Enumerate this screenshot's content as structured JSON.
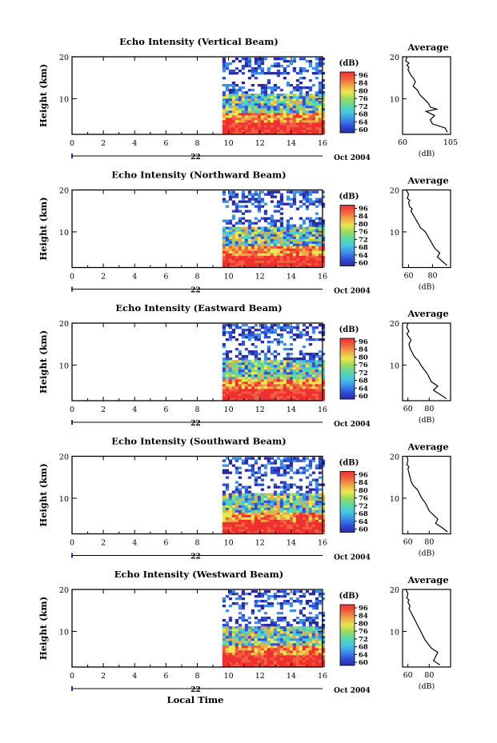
{
  "figure": {
    "xlabel": "Local Time",
    "date_suffix": "Oct 2004"
  },
  "colors": {
    "scale": [
      "#2b2b9e",
      "#2f4fd8",
      "#3f8fe8",
      "#48c8e0",
      "#5ad8a8",
      "#9ad860",
      "#e8e850",
      "#f0a848",
      "#f06040",
      "#f03030"
    ]
  },
  "chart_data": [
    {
      "type": "heatmap",
      "title": "Echo Intensity (Vertical Beam)",
      "ylabel": "Height (km)",
      "xlim": [
        0,
        16
      ],
      "ylim": [
        1.5,
        20
      ],
      "x_ticks": [
        0,
        2,
        4,
        6,
        8,
        10,
        12,
        14,
        16
      ],
      "x_tick_labels": [
        "0",
        "2",
        "4",
        "6",
        "8",
        "10",
        "12",
        "14",
        "16"
      ],
      "y_ticks": [
        10,
        20
      ],
      "y_tick_labels": [
        "10",
        "20"
      ],
      "day_label": "22",
      "data_start_hour": 9.6,
      "colorbar": {
        "title": "(dB)",
        "range": [
          60,
          96
        ],
        "tick_labels": [
          "96",
          "84",
          "80",
          "76",
          "72",
          "68",
          "64",
          "60"
        ]
      },
      "profile": {
        "title": "Average",
        "xlabel": "(dB)",
        "xlim": [
          60,
          105
        ],
        "x_ticks": [
          60,
          105
        ],
        "x_tick_labels": [
          "60",
          "105"
        ],
        "y_ticks": [
          10,
          20
        ],
        "y_tick_labels": [
          "10",
          "20"
        ],
        "x": [
          102,
          100,
          88,
          86,
          90,
          82,
          92,
          86,
          84,
          80,
          78,
          76,
          74,
          70,
          72,
          70,
          68,
          67,
          65,
          66,
          64,
          66,
          63,
          64
        ],
        "y": [
          2,
          3,
          4,
          5,
          6,
          7,
          7.5,
          8,
          9,
          10,
          10.5,
          11,
          12,
          13,
          14,
          15,
          15.5,
          16,
          17,
          17.5,
          18,
          18.5,
          19,
          20
        ]
      }
    },
    {
      "type": "heatmap",
      "title": "Echo Intensity (Northward Beam)",
      "ylabel": "Height (km)",
      "xlim": [
        0,
        16
      ],
      "ylim": [
        1.5,
        20
      ],
      "x_ticks": [
        0,
        2,
        4,
        6,
        8,
        10,
        12,
        14,
        16
      ],
      "x_tick_labels": [
        "0",
        "2",
        "4",
        "6",
        "8",
        "10",
        "12",
        "14",
        "16"
      ],
      "y_ticks": [
        10,
        20
      ],
      "y_tick_labels": [
        "10",
        "20"
      ],
      "day_label": "22",
      "data_start_hour": 9.6,
      "colorbar": {
        "title": "(dB)",
        "range": [
          60,
          96
        ],
        "tick_labels": [
          "96",
          "84",
          "80",
          "76",
          "72",
          "68",
          "64",
          "60"
        ]
      },
      "profile": {
        "title": "Average",
        "xlabel": "(dB)",
        "xlim": [
          55,
          95
        ],
        "x_ticks": [
          60,
          80
        ],
        "x_tick_labels": [
          "60",
          "80"
        ],
        "y_ticks": [
          10,
          20
        ],
        "y_tick_labels": [
          "10",
          "20"
        ],
        "x": [
          92,
          88,
          84,
          86,
          82,
          80,
          78,
          76,
          74,
          72,
          70,
          68,
          66,
          64,
          62,
          63,
          61,
          60,
          61,
          59,
          60,
          58
        ],
        "y": [
          2,
          3,
          4,
          5,
          6,
          7,
          8,
          9,
          10,
          10.5,
          11,
          12,
          13,
          14,
          15,
          15.5,
          16,
          17,
          17.5,
          18,
          19,
          20
        ]
      }
    },
    {
      "type": "heatmap",
      "title": "Echo Intensity (Eastward Beam)",
      "ylabel": "Height (km)",
      "xlim": [
        0,
        16
      ],
      "ylim": [
        1.5,
        20
      ],
      "x_ticks": [
        0,
        2,
        4,
        6,
        8,
        10,
        12,
        14,
        16
      ],
      "x_tick_labels": [
        "0",
        "2",
        "4",
        "6",
        "8",
        "10",
        "12",
        "14",
        "16"
      ],
      "y_ticks": [
        10,
        20
      ],
      "y_tick_labels": [
        "10",
        "20"
      ],
      "day_label": "22",
      "data_start_hour": 9.6,
      "colorbar": {
        "title": "(dB)",
        "range": [
          60,
          96
        ],
        "tick_labels": [
          "96",
          "84",
          "80",
          "76",
          "72",
          "68",
          "64",
          "60"
        ]
      },
      "profile": {
        "title": "Average",
        "xlabel": "(dB)",
        "xlim": [
          55,
          100
        ],
        "x_ticks": [
          60,
          80
        ],
        "x_tick_labels": [
          "60",
          "80"
        ],
        "y_ticks": [
          10,
          20
        ],
        "y_tick_labels": [
          "10",
          "20"
        ],
        "x": [
          96,
          90,
          84,
          88,
          82,
          80,
          78,
          75,
          72,
          70,
          68,
          66,
          64,
          62,
          61,
          63,
          60,
          59,
          61,
          59,
          60
        ],
        "y": [
          2,
          3,
          4,
          5,
          6,
          7,
          8,
          9,
          10,
          11,
          11.5,
          12,
          13,
          14,
          15,
          16,
          17,
          17.5,
          18,
          19,
          20
        ]
      }
    },
    {
      "type": "heatmap",
      "title": "Echo Intensity (Southward Beam)",
      "ylabel": "Height (km)",
      "xlim": [
        0,
        16
      ],
      "ylim": [
        1.5,
        20
      ],
      "x_ticks": [
        0,
        2,
        4,
        6,
        8,
        10,
        12,
        14,
        16
      ],
      "x_tick_labels": [
        "0",
        "2",
        "4",
        "6",
        "8",
        "10",
        "12",
        "14",
        "16"
      ],
      "y_ticks": [
        10,
        20
      ],
      "y_tick_labels": [
        "10",
        "20"
      ],
      "day_label": "22",
      "data_start_hour": 9.6,
      "colorbar": {
        "title": "(dB)",
        "range": [
          60,
          96
        ],
        "tick_labels": [
          "96",
          "84",
          "80",
          "76",
          "72",
          "68",
          "64",
          "60"
        ]
      },
      "profile": {
        "title": "Average",
        "xlabel": "(dB)",
        "xlim": [
          55,
          100
        ],
        "x_ticks": [
          60,
          80
        ],
        "x_tick_labels": [
          "60",
          "80"
        ],
        "y_ticks": [
          10,
          20
        ],
        "y_tick_labels": [
          "10",
          "20"
        ],
        "x": [
          97,
          92,
          86,
          88,
          84,
          80,
          78,
          76,
          73,
          71,
          69,
          67,
          65,
          63,
          62,
          61,
          60,
          61,
          59,
          60,
          59
        ],
        "y": [
          2,
          3,
          4,
          5,
          6,
          7,
          8,
          9,
          10,
          11,
          12,
          12.5,
          13,
          14,
          15,
          16,
          17,
          17.5,
          18,
          19,
          20
        ]
      }
    },
    {
      "type": "heatmap",
      "title": "Echo Intensity (Westward Beam)",
      "ylabel": "Height (km)",
      "xlim": [
        0,
        16
      ],
      "ylim": [
        1.5,
        20
      ],
      "x_ticks": [
        0,
        2,
        4,
        6,
        8,
        10,
        12,
        14,
        16
      ],
      "x_tick_labels": [
        "0",
        "2",
        "4",
        "6",
        "8",
        "10",
        "12",
        "14",
        "16"
      ],
      "y_ticks": [
        10,
        20
      ],
      "y_tick_labels": [
        "10",
        "20"
      ],
      "day_label": "22",
      "data_start_hour": 9.6,
      "colorbar": {
        "title": "(dB)",
        "range": [
          60,
          96
        ],
        "tick_labels": [
          "96",
          "84",
          "80",
          "76",
          "72",
          "68",
          "64",
          "60"
        ]
      },
      "profile": {
        "title": "Average",
        "xlabel": "(dB)",
        "xlim": [
          55,
          100
        ],
        "x_ticks": [
          60,
          80
        ],
        "x_tick_labels": [
          "60",
          "80"
        ],
        "y_ticks": [
          10,
          20
        ],
        "y_tick_labels": [
          "10",
          "20"
        ],
        "x": [
          90,
          84,
          86,
          88,
          82,
          79,
          76,
          74,
          72,
          70,
          68,
          66,
          64,
          62,
          61,
          62,
          60,
          61,
          59,
          60,
          58
        ],
        "y": [
          2,
          3,
          4,
          5,
          6,
          7,
          8,
          9,
          10,
          11,
          12,
          13,
          14,
          15,
          15.5,
          16,
          17,
          17.5,
          18,
          19,
          20
        ]
      }
    }
  ]
}
